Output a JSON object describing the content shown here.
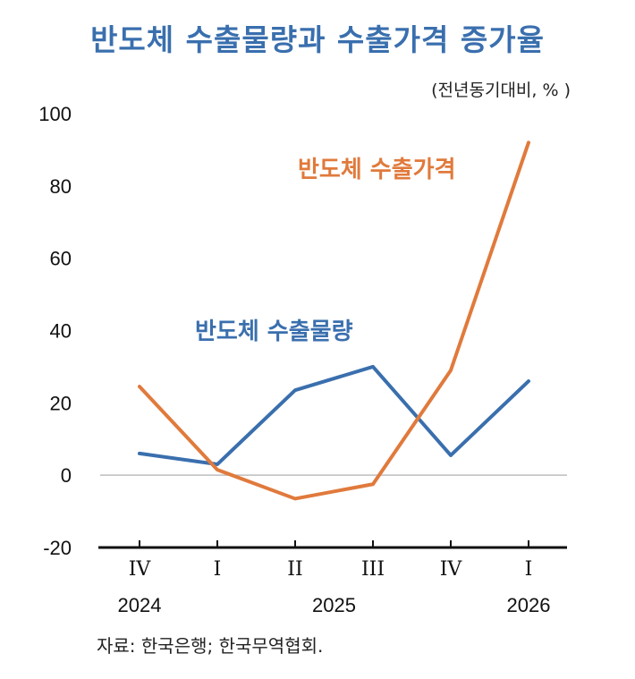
{
  "title": "반도체 수출물량과 수출가격 증가율",
  "unit": "(전년동기대비, % )",
  "source": "자료:  한국은행;  한국무역협회.",
  "chart_data": {
    "type": "line",
    "title": "반도체 수출물량과 수출가격 증가율",
    "ylabel": "(전년동기대비, % )",
    "ylim": [
      -20,
      100
    ],
    "yticks": [
      100,
      80,
      60,
      40,
      20,
      0,
      -20
    ],
    "categories": [
      "IV",
      "I",
      "II",
      "III",
      "IV",
      "I"
    ],
    "years": [
      {
        "label": "2024",
        "index": 0
      },
      {
        "label": "2025",
        "index": 2.5
      },
      {
        "label": "2026",
        "index": 5
      }
    ],
    "series": [
      {
        "name": "반도체 수출물량",
        "color": "#3a6fae",
        "values": [
          6,
          3,
          23.5,
          30,
          5.5,
          26
        ]
      },
      {
        "name": "반도체 수출가격",
        "color": "#e07a3c",
        "values": [
          24.5,
          1.5,
          -6.5,
          -2.5,
          29,
          92
        ]
      }
    ],
    "grid": false,
    "legend": "inline"
  }
}
